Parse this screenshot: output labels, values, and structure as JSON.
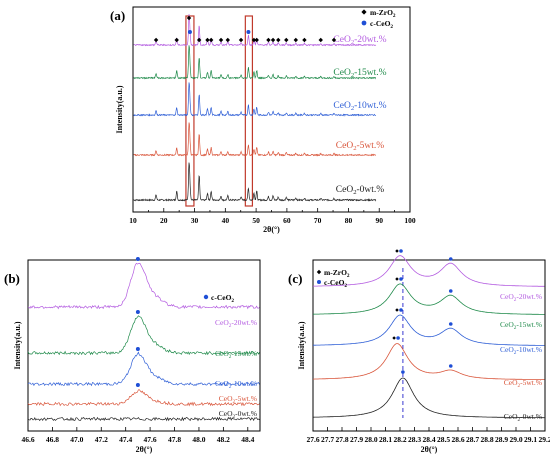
{
  "chart_data": [
    {
      "panel": "(a)",
      "type": "line",
      "xlabel": "2θ(°)",
      "ylabel": "Intensity(a.u.)",
      "xlim": [
        10,
        100
      ],
      "x_ticks": [
        "10",
        "20",
        "30",
        "40",
        "50",
        "60",
        "70",
        "80",
        "90",
        "100"
      ],
      "legend": [
        {
          "marker": "diamond",
          "label": "m-ZrO₂",
          "color": "#000000"
        },
        {
          "marker": "circle",
          "label": "c-CeO₂",
          "color": "#1f4fd6"
        }
      ],
      "series": [
        {
          "name": "CeO₂-0wt.%",
          "color": "#222222"
        },
        {
          "name": "CeO₂-5wt.%",
          "color": "#d9553a"
        },
        {
          "name": "CeO₂-10wt.%",
          "color": "#2f5fd6"
        },
        {
          "name": "CeO₂-15wt.%",
          "color": "#1f8a4a"
        },
        {
          "name": "CeO₂-20wt.%",
          "color": "#b35be0"
        }
      ],
      "peaks_2theta": [
        17.5,
        24.2,
        28.2,
        28.5,
        31.5,
        34.2,
        35.4,
        38.6,
        40.8,
        45.1,
        47.5,
        49.3,
        50.2,
        54.0,
        55.5,
        57.2,
        59.8,
        62.9,
        65.7,
        71.0,
        75.3
      ],
      "highlight_ranges": [
        [
          27.2,
          29.8
        ],
        [
          46.5,
          48.8
        ]
      ]
    },
    {
      "panel": "(b)",
      "type": "line",
      "xlabel": "2θ(°)",
      "ylabel": "Intensity(a.u.)",
      "xlim": [
        46.6,
        48.5
      ],
      "x_ticks": [
        "46.6",
        "46.8",
        "47.0",
        "47.2",
        "47.4",
        "47.6",
        "47.8",
        "48.0",
        "48.2",
        "48.4"
      ],
      "legend": [
        {
          "marker": "circle",
          "label": "c-CeO₂",
          "color": "#1f4fd6"
        }
      ],
      "series": [
        {
          "name": "CeO₂-0wt.%",
          "color": "#222222",
          "peak_x": null
        },
        {
          "name": "CeO₂-5wt.%",
          "color": "#d9553a",
          "peak_x": 47.5
        },
        {
          "name": "CeO₂-10wt.%",
          "color": "#2f5fd6",
          "peak_x": 47.5
        },
        {
          "name": "CeO₂-15wt.%",
          "color": "#1f8a4a",
          "peak_x": 47.5
        },
        {
          "name": "CeO₂-20wt.%",
          "color": "#b35be0",
          "peak_x": 47.5
        }
      ]
    },
    {
      "panel": "(c)",
      "type": "line",
      "xlabel": "2θ(°)",
      "ylabel": "Intensity(a.u.)",
      "xlim": [
        27.6,
        29.2
      ],
      "x_ticks": [
        "27.6",
        "27.7",
        "27.8",
        "27.9",
        "28.0",
        "28.1",
        "28.2",
        "28.3",
        "28.4",
        "28.5",
        "28.6",
        "28.7",
        "28.8",
        "28.9",
        "29.0",
        "29.1",
        "29.2"
      ],
      "legend": [
        {
          "marker": "diamond",
          "label": "m-ZrO₂",
          "color": "#000000"
        },
        {
          "marker": "circle",
          "label": "c-CeO₂",
          "color": "#1f4fd6"
        }
      ],
      "reference_line_x": 28.22,
      "series": [
        {
          "name": "CeO₂-0wt.%",
          "color": "#222222",
          "peaks": [
            28.22
          ]
        },
        {
          "name": "CeO₂-5wt.%",
          "color": "#d9553a",
          "peaks": [
            28.18,
            28.55
          ]
        },
        {
          "name": "CeO₂-10wt.%",
          "color": "#2f5fd6",
          "peaks": [
            28.2,
            28.55
          ]
        },
        {
          "name": "CeO₂-15wt.%",
          "color": "#1f8a4a",
          "peaks": [
            28.2,
            28.55
          ]
        },
        {
          "name": "CeO₂-20wt.%",
          "color": "#b35be0",
          "peaks": [
            28.2,
            28.55
          ]
        }
      ]
    }
  ]
}
